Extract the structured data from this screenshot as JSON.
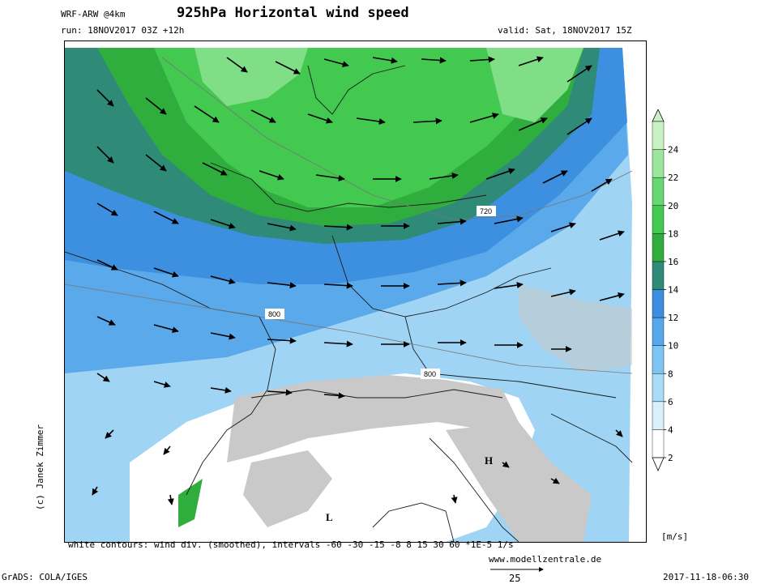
{
  "header": {
    "model": "WRF-ARW @4km",
    "title": "925hPa Horizontal wind speed",
    "run": "run: 18NOV2017 03Z +12h",
    "valid": "valid: Sat, 18NOV2017 15Z"
  },
  "map": {
    "labels": {
      "contour_720": "720",
      "contour_800_west": "800",
      "contour_800_south": "800",
      "high_marker": "H",
      "low_marker": "L"
    }
  },
  "colorbar": {
    "unit": "[m/s]",
    "ticks": [
      "2",
      "4",
      "6",
      "8",
      "10",
      "12",
      "14",
      "16",
      "18",
      "20",
      "22",
      "24"
    ],
    "colors": [
      "#ffffff",
      "#d7f0fa",
      "#a9dcf6",
      "#7cc4f2",
      "#55a8ec",
      "#3b8ee0",
      "#2f8a78",
      "#2fae3e",
      "#43c850",
      "#66d872",
      "#9be69a",
      "#c8f2c4"
    ]
  },
  "footer": {
    "contours_note": "white contours: wind div. (smoothed), intervals -60 -30 -15 -8 8 15 30 60 *1E-5 1/s",
    "website": "www.modellzentrale.de",
    "grads": "GrADS: COLA/IGES",
    "vector_scale": "25",
    "timestamp": "2017-11-18-06:30",
    "author": "(c) Janek Zimmer"
  }
}
